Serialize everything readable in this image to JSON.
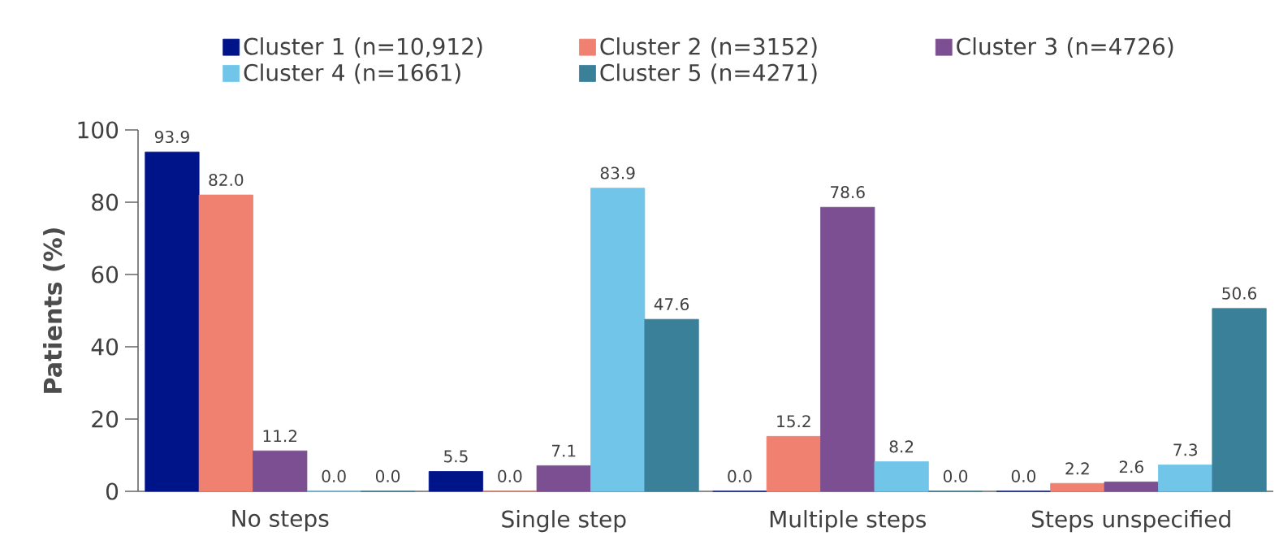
{
  "chart_data": {
    "type": "bar",
    "ylabel": "Patients (%)",
    "categories": [
      "No steps",
      "Single step",
      "Multiple steps",
      "Steps unspecified"
    ],
    "ylim": [
      0,
      100
    ],
    "yticks": [
      0,
      20,
      40,
      60,
      80,
      100
    ],
    "legend": "top",
    "grid": false,
    "series": [
      {
        "name": "Cluster 1 (n=10,912)",
        "color": "#001489",
        "values": [
          93.9,
          5.5,
          0.0,
          0.0
        ],
        "value_labels": [
          "93.9",
          "5.5",
          "0.0",
          "0.0"
        ]
      },
      {
        "name": "Cluster 2 (n=3152)",
        "color": "#f08070",
        "values": [
          82.0,
          0.0,
          15.2,
          2.2
        ],
        "value_labels": [
          "82.0",
          "0.0",
          "15.2",
          "2.2"
        ]
      },
      {
        "name": "Cluster 3 (n=4726)",
        "color": "#7b4f91",
        "values": [
          11.2,
          7.1,
          78.6,
          2.6
        ],
        "value_labels": [
          "11.2",
          "7.1",
          "78.6",
          "2.6"
        ]
      },
      {
        "name": "Cluster 4 (n=1661)",
        "color": "#70c5e8",
        "values": [
          0.0,
          83.9,
          8.2,
          7.3
        ],
        "value_labels": [
          "0.0",
          "83.9",
          "8.2",
          "7.3"
        ]
      },
      {
        "name": "Cluster 5 (n=4271)",
        "color": "#3a8099",
        "values": [
          0.0,
          47.6,
          0.0,
          50.6
        ],
        "value_labels": [
          "0.0",
          "47.6",
          "0.0",
          "50.6"
        ]
      }
    ]
  }
}
